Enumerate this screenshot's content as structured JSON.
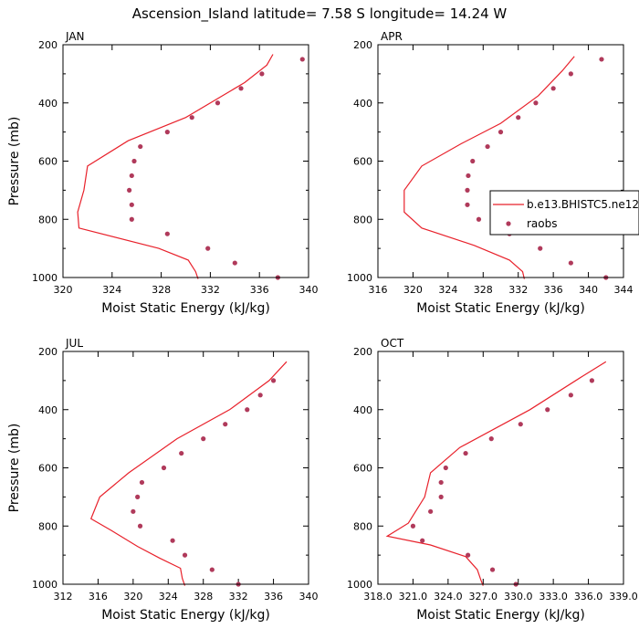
{
  "title": "Ascension_Island  latitude= 7.58 S longitude= 14.24 W",
  "colors": {
    "model_line": "#e8212b",
    "obs_marker": "#b03a5b",
    "axis": "#000000"
  },
  "legend": {
    "entries": [
      {
        "label": "b.e13.BHISTC5.ne12",
        "style": "line",
        "color": "#e8212b"
      },
      {
        "label": "raobs",
        "style": "marker",
        "color": "#b03a5b"
      }
    ]
  },
  "chart_data": [
    {
      "type": "line",
      "panel": "JAN",
      "xlabel": "Moist Static Energy (kJ/kg)",
      "ylabel": "Pressure (mb)",
      "xlim": [
        320,
        340
      ],
      "ylim": [
        200,
        1000
      ],
      "y_reversed": true,
      "xticks": [
        320,
        324,
        328,
        332,
        336,
        340
      ],
      "xticklabels": [
        "320",
        "324",
        "328",
        "332",
        "336",
        "340"
      ],
      "yticks": [
        200,
        400,
        600,
        800,
        1000
      ],
      "yticklabels": [
        "200",
        "400",
        "600",
        "800",
        "1000"
      ],
      "series": [
        {
          "name": "b.e13.BHISTC5.ne12",
          "style": "line",
          "points": [
            [
              337.1,
              233
            ],
            [
              336.6,
              270
            ],
            [
              334.8,
              330
            ],
            [
              330.0,
              450
            ],
            [
              325.3,
              530
            ],
            [
              322.0,
              617
            ],
            [
              321.7,
              700
            ],
            [
              321.2,
              775
            ],
            [
              321.3,
              830
            ],
            [
              327.8,
              900
            ],
            [
              330.2,
              940
            ],
            [
              330.8,
              980
            ],
            [
              331.0,
              1005
            ]
          ]
        },
        {
          "name": "raobs",
          "style": "marker",
          "points": [
            [
              339.5,
              250
            ],
            [
              336.2,
              300
            ],
            [
              334.5,
              350
            ],
            [
              332.6,
              400
            ],
            [
              330.5,
              450
            ],
            [
              328.5,
              500
            ],
            [
              326.3,
              550
            ],
            [
              325.8,
              600
            ],
            [
              325.6,
              650
            ],
            [
              325.4,
              700
            ],
            [
              325.6,
              750
            ],
            [
              325.6,
              800
            ],
            [
              328.5,
              850
            ],
            [
              331.8,
              900
            ],
            [
              334.0,
              950
            ],
            [
              337.5,
              1000
            ]
          ]
        }
      ]
    },
    {
      "type": "line",
      "panel": "APR",
      "xlabel": "Moist Static Energy (kJ/kg)",
      "ylabel": "",
      "xlim": [
        316,
        344
      ],
      "ylim": [
        200,
        1000
      ],
      "y_reversed": true,
      "xticks": [
        316,
        320,
        324,
        328,
        332,
        336,
        340,
        344
      ],
      "xticklabels": [
        "316",
        "320",
        "324",
        "328",
        "332",
        "336",
        "340",
        "344"
      ],
      "yticks": [
        200,
        400,
        600,
        800,
        1000
      ],
      "yticklabels": [
        "200",
        "400",
        "600",
        "800",
        "1000"
      ],
      "series": [
        {
          "name": "b.e13.BHISTC5.ne12",
          "style": "line",
          "points": [
            [
              338.4,
              240
            ],
            [
              337.0,
              290
            ],
            [
              334.3,
              375
            ],
            [
              330.0,
              470
            ],
            [
              325.5,
              540
            ],
            [
              321.0,
              617
            ],
            [
              319.0,
              700
            ],
            [
              319.0,
              775
            ],
            [
              321.0,
              830
            ],
            [
              327.0,
              890
            ],
            [
              331.0,
              940
            ],
            [
              332.5,
              980
            ],
            [
              332.7,
              1005
            ]
          ]
        },
        {
          "name": "raobs",
          "style": "marker",
          "points": [
            [
              341.5,
              250
            ],
            [
              338.0,
              300
            ],
            [
              336.0,
              350
            ],
            [
              334.0,
              400
            ],
            [
              332.0,
              450
            ],
            [
              330.0,
              500
            ],
            [
              328.5,
              550
            ],
            [
              326.8,
              600
            ],
            [
              326.3,
              650
            ],
            [
              326.2,
              700
            ],
            [
              326.2,
              750
            ],
            [
              327.5,
              800
            ],
            [
              331.0,
              850
            ],
            [
              334.5,
              900
            ],
            [
              338.0,
              950
            ],
            [
              342.0,
              1000
            ]
          ]
        }
      ]
    },
    {
      "type": "line",
      "panel": "JUL",
      "xlabel": "Moist Static Energy (kJ/kg)",
      "ylabel": "Pressure (mb)",
      "xlim": [
        312,
        340
      ],
      "ylim": [
        200,
        1000
      ],
      "y_reversed": true,
      "xticks": [
        312,
        316,
        320,
        324,
        328,
        332,
        336,
        340
      ],
      "xticklabels": [
        "312",
        "316",
        "320",
        "324",
        "328",
        "332",
        "336",
        "340"
      ],
      "yticks": [
        200,
        400,
        600,
        800,
        1000
      ],
      "yticklabels": [
        "200",
        "400",
        "600",
        "800",
        "1000"
      ],
      "series": [
        {
          "name": "b.e13.BHISTC5.ne12",
          "style": "line",
          "points": [
            [
              337.5,
              235
            ],
            [
              335.5,
              300
            ],
            [
              331.0,
              400
            ],
            [
              325.0,
              500
            ],
            [
              319.5,
              617
            ],
            [
              316.2,
              700
            ],
            [
              315.2,
              775
            ],
            [
              317.5,
              815
            ],
            [
              320.5,
              870
            ],
            [
              323.0,
              910
            ],
            [
              325.4,
              945
            ],
            [
              325.6,
              980
            ],
            [
              325.9,
              1005
            ]
          ]
        },
        {
          "name": "raobs",
          "style": "marker",
          "points": [
            [
              336.0,
              300
            ],
            [
              334.5,
              350
            ],
            [
              333.0,
              400
            ],
            [
              330.5,
              450
            ],
            [
              328.0,
              500
            ],
            [
              325.5,
              550
            ],
            [
              323.5,
              600
            ],
            [
              321.0,
              650
            ],
            [
              320.5,
              700
            ],
            [
              320.0,
              750
            ],
            [
              320.8,
              800
            ],
            [
              324.5,
              850
            ],
            [
              325.9,
              900
            ],
            [
              329.0,
              950
            ],
            [
              332.0,
              1000
            ]
          ]
        }
      ]
    },
    {
      "type": "line",
      "panel": "OCT",
      "xlabel": "Moist Static Energy (kJ/kg)",
      "ylabel": "",
      "xlim": [
        318,
        339
      ],
      "ylim": [
        200,
        1000
      ],
      "y_reversed": true,
      "xticks": [
        318,
        321,
        324,
        327,
        330,
        333,
        336,
        339
      ],
      "xticklabels": [
        "318.0",
        "321.0",
        "324.0",
        "327.0",
        "330.0",
        "333.0",
        "336.0",
        "339.0"
      ],
      "yticks": [
        200,
        400,
        600,
        800,
        1000
      ],
      "yticklabels": [
        "200",
        "400",
        "600",
        "800",
        "1000"
      ],
      "series": [
        {
          "name": "b.e13.BHISTC5.ne12",
          "style": "line",
          "points": [
            [
              337.5,
              235
            ],
            [
              335.5,
              285
            ],
            [
              331.0,
              400
            ],
            [
              325.0,
              530
            ],
            [
              322.5,
              617
            ],
            [
              322.0,
              700
            ],
            [
              320.6,
              790
            ],
            [
              318.8,
              835
            ],
            [
              322.5,
              865
            ],
            [
              325.5,
              905
            ],
            [
              326.5,
              950
            ],
            [
              326.8,
              985
            ],
            [
              327.0,
              1005
            ]
          ]
        },
        {
          "name": "raobs",
          "style": "marker",
          "points": [
            [
              336.3,
              300
            ],
            [
              334.5,
              350
            ],
            [
              332.5,
              400
            ],
            [
              330.2,
              450
            ],
            [
              327.7,
              500
            ],
            [
              325.5,
              550
            ],
            [
              323.8,
              600
            ],
            [
              323.4,
              650
            ],
            [
              323.4,
              700
            ],
            [
              322.5,
              750
            ],
            [
              321.0,
              800
            ],
            [
              321.8,
              850
            ],
            [
              325.7,
              900
            ],
            [
              327.8,
              950
            ],
            [
              329.8,
              1000
            ]
          ]
        }
      ]
    }
  ]
}
